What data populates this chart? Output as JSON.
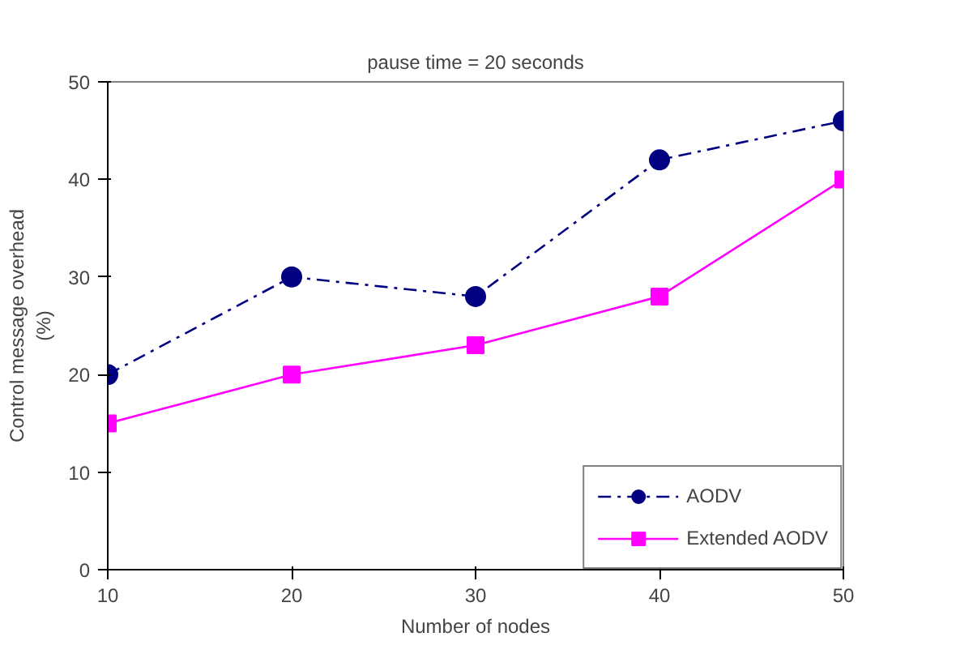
{
  "chart_data": {
    "type": "line",
    "title": "pause time = 20 seconds",
    "xlabel": "Number of nodes",
    "ylabel": "Control message overhead\n(%)",
    "x": [
      10,
      20,
      30,
      40,
      50
    ],
    "series": [
      {
        "name": "AODV",
        "color": "#000080",
        "values": [
          20,
          30,
          28,
          42,
          46
        ],
        "marker": "circle",
        "line_style": "dashed"
      },
      {
        "name": "Extended AODV",
        "color": "#ff00ff",
        "values": [
          15,
          20,
          23,
          28,
          40
        ],
        "marker": "square",
        "line_style": "solid"
      }
    ],
    "xlim": [
      10,
      50
    ],
    "xticks": [
      10,
      20,
      30,
      40,
      50
    ],
    "ylim": [
      0,
      50
    ],
    "yticks": [
      0,
      10,
      20,
      30,
      40,
      50
    ],
    "grid": false,
    "legend": "bottom right"
  }
}
